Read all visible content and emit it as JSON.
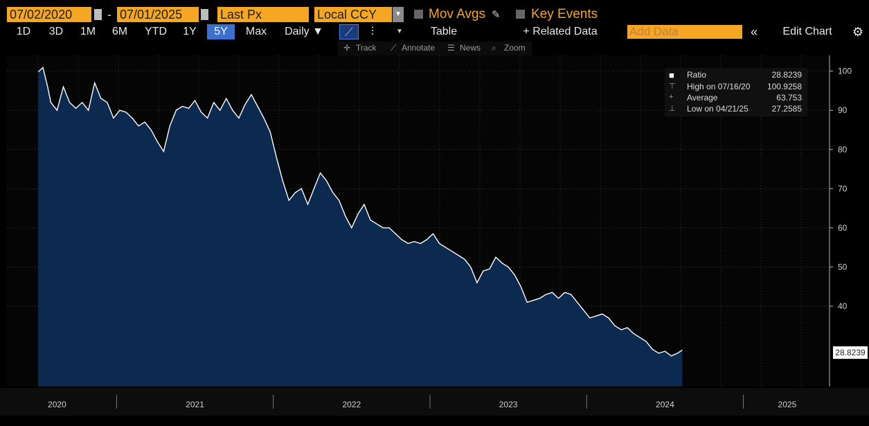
{
  "toolbar": {
    "start_date": "07/02/2020",
    "separator": "-",
    "end_date": "07/01/2025",
    "field": "Last Px",
    "currency": "Local CCY",
    "mov_avgs": "Mov Avgs",
    "key_events": "Key Events"
  },
  "periods": [
    "1D",
    "3D",
    "1M",
    "6M",
    "YTD",
    "1Y",
    "5Y",
    "Max"
  ],
  "selected_period": "5Y",
  "frequency": "Daily ▼",
  "table_label": "Table",
  "related_data": "+ Related Data",
  "add_data_placeholder": "Add Data",
  "edit_chart": "Edit Chart",
  "chart_tools": [
    "Track",
    "Annotate",
    "News",
    "Zoom"
  ],
  "legend": {
    "ratio_label": "Ratio",
    "ratio_value": "28.8239",
    "high_label": "High on 07/16/20",
    "high_value": "100.9258",
    "avg_label": "Average",
    "avg_value": "63.753",
    "low_label": "Low on 04/21/25",
    "low_value": "27.2585"
  },
  "last_value_tag": "28.8239",
  "colors": {
    "accent": "#f5a623",
    "fill": "#0c2a50",
    "line": "#ffffff",
    "selected": "#3b6fd0"
  },
  "chart_data": {
    "type": "area",
    "title": "Ratio",
    "x_labels": [
      "2020",
      "2021",
      "2022",
      "2023",
      "2024",
      "2025"
    ],
    "y_ticks": [
      40,
      50,
      60,
      70,
      80,
      90,
      100
    ],
    "ylim": [
      19.5,
      104
    ],
    "x_range": [
      2020.3,
      2025.55
    ],
    "grid": true,
    "series": [
      {
        "name": "Ratio",
        "points": [
          [
            2020.5,
            99.8
          ],
          [
            2020.53,
            100.9
          ],
          [
            2020.56,
            96
          ],
          [
            2020.58,
            92
          ],
          [
            2020.62,
            90
          ],
          [
            2020.66,
            96
          ],
          [
            2020.7,
            92
          ],
          [
            2020.74,
            90.5
          ],
          [
            2020.78,
            92
          ],
          [
            2020.82,
            90
          ],
          [
            2020.86,
            97
          ],
          [
            2020.9,
            93
          ],
          [
            2020.94,
            92
          ],
          [
            2020.98,
            88
          ],
          [
            2021.02,
            90
          ],
          [
            2021.06,
            89.5
          ],
          [
            2021.1,
            88
          ],
          [
            2021.14,
            86
          ],
          [
            2021.18,
            87
          ],
          [
            2021.22,
            85
          ],
          [
            2021.26,
            82
          ],
          [
            2021.3,
            79.5
          ],
          [
            2021.34,
            86
          ],
          [
            2021.38,
            90
          ],
          [
            2021.42,
            91
          ],
          [
            2021.46,
            90.5
          ],
          [
            2021.5,
            92.5
          ],
          [
            2021.54,
            89.5
          ],
          [
            2021.58,
            88
          ],
          [
            2021.62,
            92
          ],
          [
            2021.66,
            90
          ],
          [
            2021.7,
            93
          ],
          [
            2021.74,
            90
          ],
          [
            2021.78,
            88
          ],
          [
            2021.82,
            91.5
          ],
          [
            2021.86,
            94
          ],
          [
            2021.9,
            91
          ],
          [
            2021.94,
            88
          ],
          [
            2021.98,
            84.5
          ],
          [
            2022.02,
            78
          ],
          [
            2022.06,
            72
          ],
          [
            2022.1,
            67
          ],
          [
            2022.14,
            69
          ],
          [
            2022.18,
            70
          ],
          [
            2022.22,
            66
          ],
          [
            2022.26,
            70
          ],
          [
            2022.3,
            74
          ],
          [
            2022.34,
            72
          ],
          [
            2022.38,
            69
          ],
          [
            2022.42,
            67
          ],
          [
            2022.46,
            63
          ],
          [
            2022.5,
            60
          ],
          [
            2022.54,
            63.5
          ],
          [
            2022.58,
            66
          ],
          [
            2022.62,
            62
          ],
          [
            2022.66,
            61
          ],
          [
            2022.7,
            60
          ],
          [
            2022.74,
            60
          ],
          [
            2022.78,
            58.5
          ],
          [
            2022.82,
            57
          ],
          [
            2022.86,
            56
          ],
          [
            2022.9,
            56.5
          ],
          [
            2022.94,
            56
          ],
          [
            2022.98,
            57
          ],
          [
            2023.02,
            58.5
          ],
          [
            2023.06,
            56
          ],
          [
            2023.1,
            55
          ],
          [
            2023.14,
            54
          ],
          [
            2023.18,
            53
          ],
          [
            2023.22,
            52
          ],
          [
            2023.26,
            50
          ],
          [
            2023.3,
            46
          ],
          [
            2023.34,
            49
          ],
          [
            2023.38,
            49.5
          ],
          [
            2023.42,
            52.5
          ],
          [
            2023.46,
            51
          ],
          [
            2023.5,
            50
          ],
          [
            2023.54,
            48
          ],
          [
            2023.58,
            45
          ],
          [
            2023.62,
            41
          ],
          [
            2023.66,
            41.5
          ],
          [
            2023.7,
            42
          ],
          [
            2023.74,
            43
          ],
          [
            2023.78,
            43.5
          ],
          [
            2023.82,
            42
          ],
          [
            2023.86,
            43.5
          ],
          [
            2023.9,
            43
          ],
          [
            2023.94,
            41
          ],
          [
            2023.98,
            39
          ],
          [
            2024.02,
            37
          ],
          [
            2024.06,
            37.5
          ],
          [
            2024.1,
            38
          ],
          [
            2024.14,
            37
          ],
          [
            2024.18,
            35
          ],
          [
            2024.22,
            34
          ],
          [
            2024.26,
            34.5
          ],
          [
            2024.3,
            33
          ],
          [
            2024.34,
            32
          ],
          [
            2024.38,
            31
          ],
          [
            2024.42,
            29
          ],
          [
            2024.46,
            28
          ],
          [
            2024.5,
            28.5
          ],
          [
            2024.54,
            27.3
          ],
          [
            2024.58,
            28
          ],
          [
            2024.61,
            28.8
          ]
        ]
      }
    ]
  }
}
